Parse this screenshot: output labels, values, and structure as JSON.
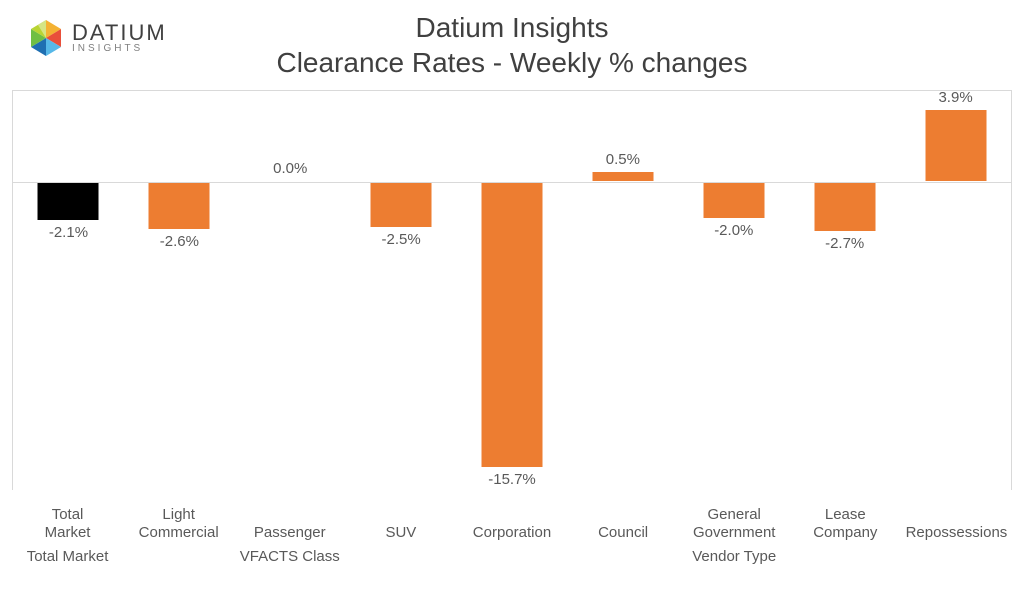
{
  "logo": {
    "main": "DATIUM",
    "sub": "INSIGHTS"
  },
  "title": {
    "line1": "Datium Insights",
    "line2": "Clearance Rates - Weekly % changes"
  },
  "chart": {
    "type": "bar",
    "background_color": "#ffffff",
    "grid_color": "#d9d9d9",
    "text_color": "#595959",
    "label_fontsize": 15,
    "title_fontsize": 28,
    "value_range": {
      "min": -17,
      "max": 5
    },
    "bars": [
      {
        "category": "Total Market",
        "group": "Total Market",
        "value": -2.1,
        "label": "-2.1%",
        "color": "#000000"
      },
      {
        "category": "Light Commercial",
        "group": "VFACTS Class",
        "value": -2.6,
        "label": "-2.6%",
        "color": "#ed7d31"
      },
      {
        "category": "Passenger",
        "group": "VFACTS Class",
        "value": 0.0,
        "label": "0.0%",
        "color": "#ed7d31"
      },
      {
        "category": "SUV",
        "group": "VFACTS Class",
        "value": -2.5,
        "label": "-2.5%",
        "color": "#ed7d31"
      },
      {
        "category": "Corporation",
        "group": "Vendor Type",
        "value": -15.7,
        "label": "-15.7%",
        "color": "#ed7d31"
      },
      {
        "category": "Council",
        "group": "Vendor Type",
        "value": 0.5,
        "label": "0.5%",
        "color": "#ed7d31"
      },
      {
        "category": "General Government",
        "group": "Vendor Type",
        "value": -2.0,
        "label": "-2.0%",
        "color": "#ed7d31"
      },
      {
        "category": "Lease Company",
        "group": "Vendor Type",
        "value": -2.7,
        "label": "-2.7%",
        "color": "#ed7d31"
      },
      {
        "category": "Repossessions",
        "group": "Vendor Type",
        "value": 3.9,
        "label": "3.9%",
        "color": "#ed7d31"
      }
    ],
    "groups": [
      {
        "name": "Total Market",
        "span": 1
      },
      {
        "name": "VFACTS Class",
        "span": 3
      },
      {
        "name": "Vendor Type",
        "span": 5
      }
    ]
  }
}
